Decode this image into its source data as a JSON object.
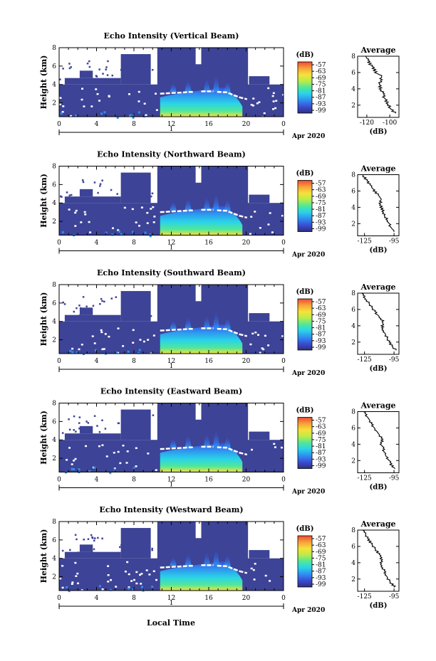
{
  "figure": {
    "xlabel": "Local Time",
    "x_ticks": [
      "0",
      "4",
      "8",
      "12",
      "16",
      "20",
      "0"
    ],
    "day_label": "1",
    "month_label": "Apr 2020",
    "ylabel": "Height (km)",
    "y_ticks": [
      "2",
      "4",
      "6",
      "8"
    ],
    "colorbar_unit": "(dB)",
    "colorbar_ticks": [
      "-57",
      "-63",
      "-69",
      "-75",
      "-81",
      "-87",
      "-93",
      "-99"
    ],
    "avg_title": "Average",
    "avg_xlabel": "(dB)",
    "colors": {
      "background_echo": "#3d4396",
      "enhanced_layer": "#ffffff",
      "colormap": [
        "#30307e",
        "#3a4bd1",
        "#2f8ff0",
        "#2ad3e8",
        "#4fe79b",
        "#b6ec4a",
        "#f5e23a",
        "#f7a63a",
        "#ed4a34"
      ]
    }
  },
  "chart_data": [
    {
      "type": "heatmap",
      "title": "Echo Intensity (Vertical Beam)",
      "x_range_hours": [
        0,
        24
      ],
      "y_range_km": [
        0.5,
        8
      ],
      "z_range_db": [
        -99,
        -57
      ],
      "avg_title": "Average",
      "avg_ticks": [
        "-120",
        "-100"
      ],
      "avg_xlim_db": [
        -128,
        -92
      ],
      "avg_profile": {
        "height_km": [
          1.0,
          1.5,
          2.0,
          2.5,
          3.0,
          3.5,
          4.0,
          4.5,
          5.0,
          5.5,
          6.0,
          6.5,
          7.0,
          7.5,
          8.0
        ],
        "db": [
          -95,
          -99,
          -101,
          -103,
          -105,
          -106,
          -108,
          -109,
          -108,
          -107,
          -112,
          -114,
          -117,
          -119,
          -121
        ]
      }
    },
    {
      "type": "heatmap",
      "title": "Echo Intensity (Northward Beam)",
      "x_range_hours": [
        0,
        24
      ],
      "y_range_km": [
        0.5,
        8
      ],
      "z_range_db": [
        -99,
        -57
      ],
      "avg_title": "Average",
      "avg_ticks": [
        "-125",
        "-95"
      ],
      "avg_xlim_db": [
        -132,
        -90
      ],
      "avg_profile": {
        "height_km": [
          1.0,
          1.5,
          2.0,
          2.5,
          3.0,
          3.5,
          4.0,
          4.5,
          5.0,
          5.5,
          6.0,
          6.5,
          7.0,
          7.5,
          8.0
        ],
        "db": [
          -94,
          -98,
          -100,
          -102,
          -105,
          -106,
          -108,
          -109,
          -108,
          -111,
          -115,
          -118,
          -121,
          -124,
          -127
        ]
      }
    },
    {
      "type": "heatmap",
      "title": "Echo Intensity (Southward Beam)",
      "x_range_hours": [
        0,
        24
      ],
      "y_range_km": [
        0.5,
        8
      ],
      "z_range_db": [
        -99,
        -57
      ],
      "avg_title": "Average",
      "avg_ticks": [
        "-125",
        "-95"
      ],
      "avg_xlim_db": [
        -132,
        -90
      ],
      "avg_profile": {
        "height_km": [
          1.0,
          1.5,
          2.0,
          2.5,
          3.0,
          3.5,
          4.0,
          4.5,
          5.0,
          5.5,
          6.0,
          6.5,
          7.0,
          7.5,
          8.0
        ],
        "db": [
          -93,
          -97,
          -100,
          -102,
          -104,
          -106,
          -107,
          -106,
          -109,
          -113,
          -116,
          -119,
          -122,
          -125,
          -128
        ]
      }
    },
    {
      "type": "heatmap",
      "title": "Echo Intensity (Eastward Beam)",
      "x_range_hours": [
        0,
        24
      ],
      "y_range_km": [
        0.5,
        8
      ],
      "z_range_db": [
        -99,
        -57
      ],
      "avg_title": "Average",
      "avg_ticks": [
        "-125",
        "-95"
      ],
      "avg_xlim_db": [
        -132,
        -90
      ],
      "avg_profile": {
        "height_km": [
          1.0,
          1.5,
          2.0,
          2.5,
          3.0,
          3.5,
          4.0,
          4.5,
          5.0,
          5.5,
          6.0,
          6.5,
          7.0,
          7.5,
          8.0
        ],
        "db": [
          -94,
          -98,
          -100,
          -103,
          -105,
          -106,
          -108,
          -107,
          -109,
          -112,
          -115,
          -118,
          -120,
          -123,
          -126
        ]
      }
    },
    {
      "type": "heatmap",
      "title": "Echo Intensity (Westward Beam)",
      "x_range_hours": [
        0,
        24
      ],
      "y_range_km": [
        0.5,
        8
      ],
      "z_range_db": [
        -99,
        -57
      ],
      "avg_title": "Average",
      "avg_ticks": [
        "-125",
        "-95"
      ],
      "avg_xlim_db": [
        -132,
        -90
      ],
      "avg_profile": {
        "height_km": [
          1.0,
          1.5,
          2.0,
          2.5,
          3.0,
          3.5,
          4.0,
          4.5,
          5.0,
          5.5,
          6.0,
          6.5,
          7.0,
          7.5,
          8.0
        ],
        "db": [
          -94,
          -98,
          -101,
          -103,
          -105,
          -107,
          -108,
          -108,
          -110,
          -113,
          -116,
          -119,
          -122,
          -124,
          -127
        ]
      }
    }
  ]
}
